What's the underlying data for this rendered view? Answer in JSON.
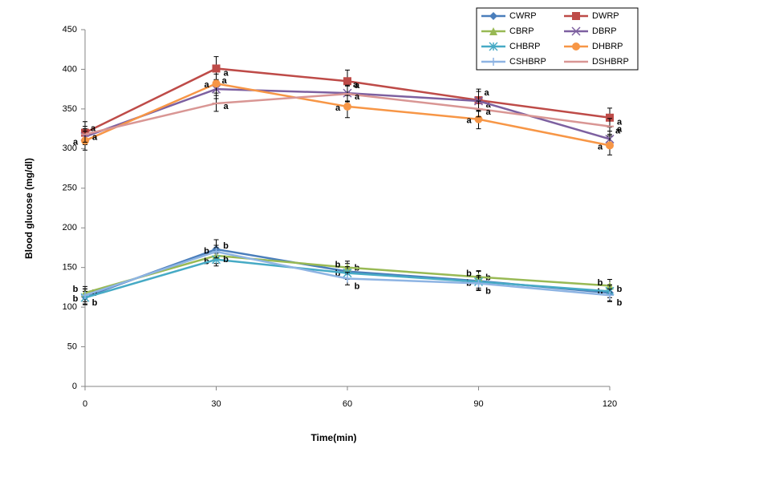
{
  "chart_data": {
    "type": "line",
    "x_label": "Time(min)",
    "y_label": "Blood glucose (mg/dl)",
    "x": [
      0,
      30,
      60,
      90,
      120
    ],
    "xlim": [
      0,
      120
    ],
    "xticks": [
      0,
      30,
      60,
      90,
      120
    ],
    "ylim": [
      0,
      450
    ],
    "yticks": [
      0,
      50,
      100,
      150,
      200,
      250,
      300,
      350,
      400,
      450
    ],
    "series": [
      {
        "name": "CWRP",
        "color": "#4a7ebb",
        "marker": "diamond",
        "values": [
          113,
          173,
          145,
          133,
          118
        ],
        "errors": [
          10,
          12,
          10,
          12,
          10
        ],
        "letters": [
          "b",
          "b",
          "b",
          "b",
          "b"
        ]
      },
      {
        "name": "DWRP",
        "color": "#be4b48",
        "marker": "square",
        "values": [
          320,
          401,
          385,
          361,
          339
        ],
        "errors": [
          14,
          15,
          14,
          14,
          12
        ],
        "letters": [
          "a",
          "a",
          "a",
          "a",
          "a"
        ]
      },
      {
        "name": "CBRP",
        "color": "#98b954",
        "marker": "triangle",
        "values": [
          118,
          165,
          150,
          138,
          127
        ],
        "errors": [
          8,
          10,
          8,
          8,
          8
        ],
        "letters": [
          "b",
          "b",
          "b",
          "b",
          "b"
        ]
      },
      {
        "name": "DBRP",
        "color": "#7d60a0",
        "marker": "x",
        "values": [
          315,
          375,
          370,
          360,
          312
        ],
        "errors": [
          10,
          12,
          10,
          12,
          10
        ],
        "letters": [
          "a",
          "a",
          "a",
          "a",
          "a"
        ]
      },
      {
        "name": "CHBRP",
        "color": "#46aac5",
        "marker": "star",
        "values": [
          112,
          160,
          143,
          132,
          120
        ],
        "errors": [
          8,
          8,
          8,
          8,
          8
        ],
        "letters": [
          "b",
          "b",
          "b",
          "b",
          "b"
        ]
      },
      {
        "name": "DHBRP",
        "color": "#f79646",
        "marker": "circle",
        "values": [
          310,
          382,
          353,
          337,
          304
        ],
        "errors": [
          12,
          12,
          14,
          12,
          12
        ],
        "letters": [
          "a",
          "a",
          "a",
          "a",
          "a"
        ]
      },
      {
        "name": "CSHBRP",
        "color": "#8eb4e3",
        "marker": "plus",
        "values": [
          115,
          170,
          136,
          130,
          115
        ],
        "errors": [
          8,
          8,
          8,
          8,
          8
        ],
        "letters": [
          "b",
          "b",
          "b",
          "b",
          "b"
        ]
      },
      {
        "name": "DSHBRP",
        "color": "#d99694",
        "marker": "dash",
        "values": [
          318,
          357,
          369,
          350,
          328
        ],
        "errors": [
          10,
          10,
          10,
          10,
          10
        ],
        "letters": [
          "a",
          "a",
          "a",
          "a",
          "a"
        ]
      }
    ]
  }
}
